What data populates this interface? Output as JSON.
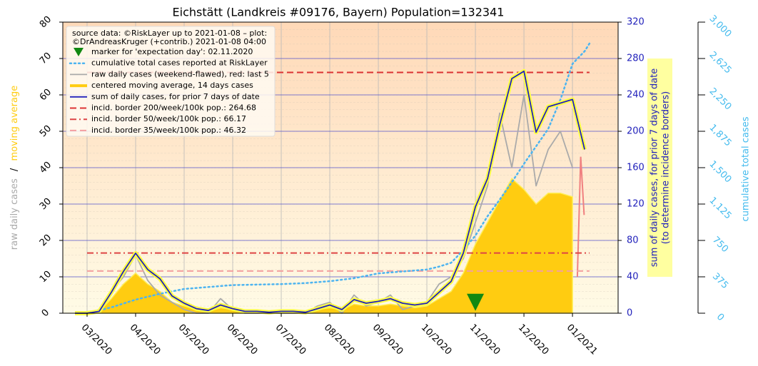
{
  "chart_data": {
    "type": "line",
    "title": "Eichstätt (Landkreis #09176, Bayern) Population=132341",
    "source_note": [
      "source data: ©RiskLayer up to 2021-01-08 – plot:",
      "©DrAndreasKruger (+contrib.) 2021-01-08 04:00"
    ],
    "ylabel": [
      "raw daily cases",
      "/",
      "moving average"
    ],
    "y2label": [
      "sum of daily cases, for prior 7 days of date",
      "(to determine incidence borders)"
    ],
    "y3label": "cumulative total cases",
    "xlim": [
      2.5,
      13.94
    ],
    "xticks": [
      {
        "value": 3,
        "label": "03/2020"
      },
      {
        "value": 4,
        "label": "04/2020"
      },
      {
        "value": 5,
        "label": "05/2020"
      },
      {
        "value": 6,
        "label": "06/2020"
      },
      {
        "value": 7,
        "label": "07/2020"
      },
      {
        "value": 8,
        "label": "08/2020"
      },
      {
        "value": 9,
        "label": "09/2020"
      },
      {
        "value": 10,
        "label": "10/2020"
      },
      {
        "value": 11,
        "label": "11/2020"
      },
      {
        "value": 12,
        "label": "12/2020"
      },
      {
        "value": 13,
        "label": "01/2021"
      }
    ],
    "ylim": [
      0,
      80
    ],
    "yticks": [
      0,
      10,
      20,
      30,
      40,
      50,
      60,
      70,
      80
    ],
    "y2lim": [
      0,
      320
    ],
    "y2ticks": [
      0,
      40,
      80,
      120,
      160,
      200,
      240,
      280,
      320
    ],
    "y3lim": [
      0,
      3000
    ],
    "y3ticks": [
      0,
      375,
      750,
      {
        "value": 1125,
        "label": "1,125"
      },
      {
        "value": 1500,
        "label": "1,500"
      },
      {
        "value": 1875,
        "label": "1,875"
      },
      {
        "value": 2250,
        "label": "2,250"
      },
      {
        "value": 2625,
        "label": "2,625"
      },
      {
        "value": 3000,
        "label": "3,000"
      }
    ],
    "grid": true,
    "x": [
      2.75,
      3,
      3.25,
      3.5,
      3.75,
      4,
      4.25,
      4.5,
      4.75,
      5,
      5.25,
      5.5,
      5.75,
      6,
      6.25,
      6.5,
      6.75,
      7,
      7.25,
      7.5,
      7.75,
      8,
      8.25,
      8.5,
      8.75,
      9,
      9.25,
      9.5,
      9.75,
      10,
      10.25,
      10.5,
      10.75,
      11,
      11.25,
      11.5,
      11.75,
      12,
      12.25,
      12.5,
      12.75,
      13,
      13.25
    ],
    "series": [
      {
        "name": "marker for 'expectation day': 02.11.2020",
        "style": "marker",
        "color": "#118811",
        "axis": "y",
        "x": [
          11
        ],
        "values": [
          3
        ]
      },
      {
        "name": "cumulative total cases reported at RiskLayer",
        "style": "dotted",
        "color": "#4db4f0",
        "axis": "y3",
        "x": [
          3,
          3.5,
          4,
          4.5,
          5,
          5.5,
          6,
          6.5,
          7,
          7.5,
          8,
          8.5,
          9,
          9.5,
          10,
          10.25,
          10.5,
          10.75,
          11,
          11.25,
          11.5,
          11.75,
          12,
          12.25,
          12.5,
          12.75,
          13,
          13.25,
          13.35
        ],
        "values": [
          0,
          60,
          140,
          200,
          250,
          270,
          290,
          295,
          300,
          310,
          330,
          360,
          410,
          430,
          450,
          480,
          520,
          650,
          800,
          1000,
          1170,
          1350,
          1540,
          1720,
          1900,
          2200,
          2570,
          2700,
          2780
        ]
      },
      {
        "name": "raw daily cases (weekend-flawed), red: last 5",
        "style": "line",
        "color": "#aaaaaa",
        "axis": "y",
        "values": [
          0,
          0,
          1,
          6,
          10,
          16,
          9,
          5,
          3,
          1,
          0,
          0,
          4,
          1,
          0,
          0,
          0,
          0,
          0,
          0,
          2,
          3,
          0,
          5,
          2,
          3,
          5,
          1,
          2,
          3,
          8,
          10,
          15,
          25,
          35,
          55,
          40,
          60,
          35,
          45,
          50,
          40,
          null
        ],
        "highlight": {
          "color": "#f08080",
          "x": [
            13.1,
            13.17,
            13.24
          ],
          "values": [
            10,
            43,
            27
          ]
        }
      },
      {
        "name": "centered moving average, 14 days cases",
        "style": "area",
        "color": "#ffcc11",
        "axis": "y",
        "values": [
          0,
          0,
          0.5,
          4,
          8,
          11,
          8,
          6,
          3,
          2,
          1,
          0.5,
          1.5,
          1,
          0.5,
          0.3,
          0.2,
          0.3,
          0.3,
          0.2,
          1,
          1.5,
          1,
          2.5,
          2,
          2,
          2.5,
          2,
          1.5,
          2,
          4,
          6,
          11,
          19,
          25,
          31,
          37,
          34,
          30,
          33,
          33,
          32,
          null
        ]
      },
      {
        "name": "sum of daily cases, for prior 7 days of date",
        "style": "halo",
        "color": "#2222bb",
        "axis": "y2",
        "values": [
          0,
          0,
          2,
          23,
          46,
          66,
          48,
          38,
          19,
          11,
          5,
          3,
          9,
          5,
          2,
          2,
          1,
          2,
          2,
          1,
          5,
          9,
          4,
          15,
          11,
          13,
          16,
          11,
          9,
          11,
          23,
          35,
          66,
          117,
          148,
          207,
          258,
          266,
          199,
          227,
          231,
          235,
          180
        ]
      },
      {
        "name": "incid. border 200/week/100k pop.: 264.68",
        "style": "dashed",
        "color": "#dd3333",
        "axis": "y2",
        "x": [
          3,
          13.35
        ],
        "values": [
          264.68,
          264.68
        ]
      },
      {
        "name": "incid. border 50/week/100k pop.: 66.17",
        "style": "dashdot",
        "color": "#dd4444",
        "axis": "y2",
        "x": [
          3,
          13.35
        ],
        "values": [
          66.17,
          66.17
        ]
      },
      {
        "name": "incid. border 35/week/100k pop.: 46.32",
        "style": "dashed",
        "color": "#f4a0a0",
        "axis": "y2",
        "x": [
          3,
          13.35
        ],
        "values": [
          46.32,
          46.32
        ]
      }
    ]
  }
}
